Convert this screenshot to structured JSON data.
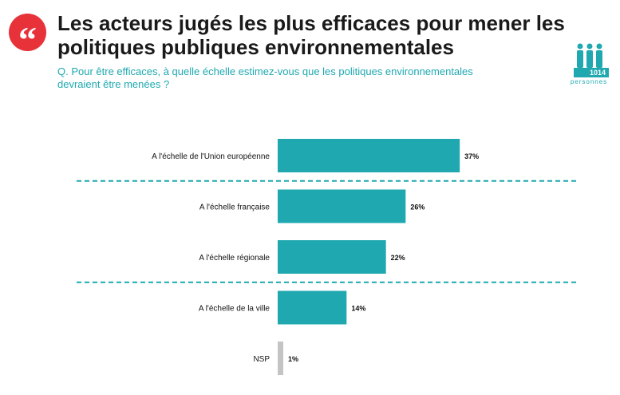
{
  "header": {
    "quote_glyph": "“",
    "title_line1": "Les acteurs jugés les plus efficaces pour mener les",
    "title_line2": "politiques publiques environnementales",
    "question_line1": "Q. Pour être efficaces, à quelle échelle estimez-vous que les politiques environnementales",
    "question_line2": "devraient être menées ?"
  },
  "sample": {
    "count": "1014",
    "unit": "personnes",
    "icon": "people-icon"
  },
  "colors": {
    "bar": "#1fa8b0",
    "nsp_bar": "#c4c4c4",
    "divider": "#1fa8b0",
    "accent": "#e8323a"
  },
  "chart_data": {
    "type": "bar",
    "orientation": "horizontal",
    "categories": [
      "A l'échelle de l'Union européenne",
      "A l'échelle française",
      "A l'échelle régionale",
      "A l'échelle de la ville",
      "NSP"
    ],
    "values": [
      37,
      26,
      22,
      14,
      1
    ],
    "value_labels": [
      "37%",
      "26%",
      "22%",
      "14%",
      "1%"
    ],
    "xlim": [
      0,
      60
    ],
    "grid": false,
    "legend": "none",
    "dividers_after": [
      0,
      2
    ]
  }
}
